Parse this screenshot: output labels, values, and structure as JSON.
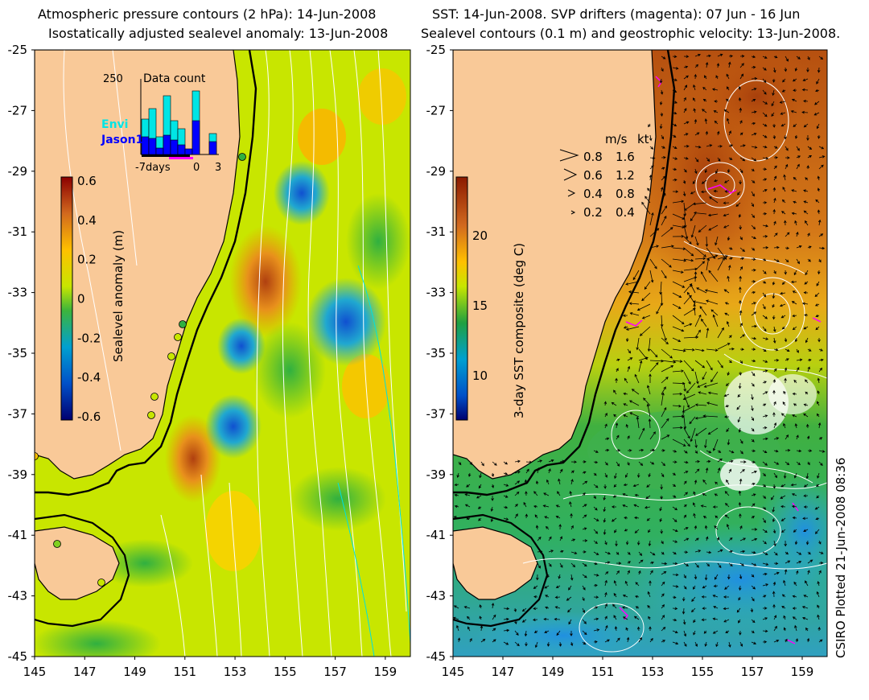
{
  "left_panel": {
    "title_line1": "Atmospheric pressure contours (2 hPa): 14-Jun-2008",
    "title_line2": "Isostatically adjusted sealevel anomaly: 13-Jun-2008",
    "colorbar": {
      "label": "Sealevel anomaly (m)",
      "ticks": [
        "0.6",
        "0.4",
        "0.2",
        "0",
        "-0.2",
        "-0.4",
        "-0.6"
      ]
    },
    "inset": {
      "title": "Data count",
      "ymax_label": "250",
      "legend": [
        {
          "name": "Envi",
          "color": "#00e5e5"
        },
        {
          "name": "Jason1",
          "color": "#0000ff"
        }
      ],
      "x_labels": [
        "-7days",
        "0",
        "3"
      ]
    }
  },
  "right_panel": {
    "title_line1": "SST: 14-Jun-2008. SVP drifters (magenta): 07 Jun - 16 Jun",
    "title_line2": "Sealevel contours (0.1 m) and geostrophic velocity: 13-Jun-2008.",
    "colorbar": {
      "label": "3-day SST composite (deg C)",
      "ticks": [
        "20",
        "15",
        "10"
      ]
    },
    "velocity_legend": {
      "header_ms": "m/s",
      "header_kt": "kt",
      "rows": [
        {
          "ms": "0.8",
          "kt": "1.6"
        },
        {
          "ms": "0.6",
          "kt": "1.2"
        },
        {
          "ms": "0.4",
          "kt": "0.8"
        },
        {
          "ms": "0.2",
          "kt": "0.4"
        }
      ]
    }
  },
  "axes": {
    "lat_labels": [
      "-25",
      "-27",
      "-29",
      "-31",
      "-33",
      "-35",
      "-37",
      "-39",
      "-41",
      "-43",
      "-45"
    ],
    "lon_labels": [
      "145",
      "147",
      "149",
      "151",
      "153",
      "155",
      "157",
      "159"
    ]
  },
  "credit": "CSIRO Plotted 21-Jun-2008 08:36",
  "colors": {
    "land": "#f9c998",
    "coast_line": "#000000",
    "contour": "#ffffff",
    "drifter": "#ff00ff"
  }
}
